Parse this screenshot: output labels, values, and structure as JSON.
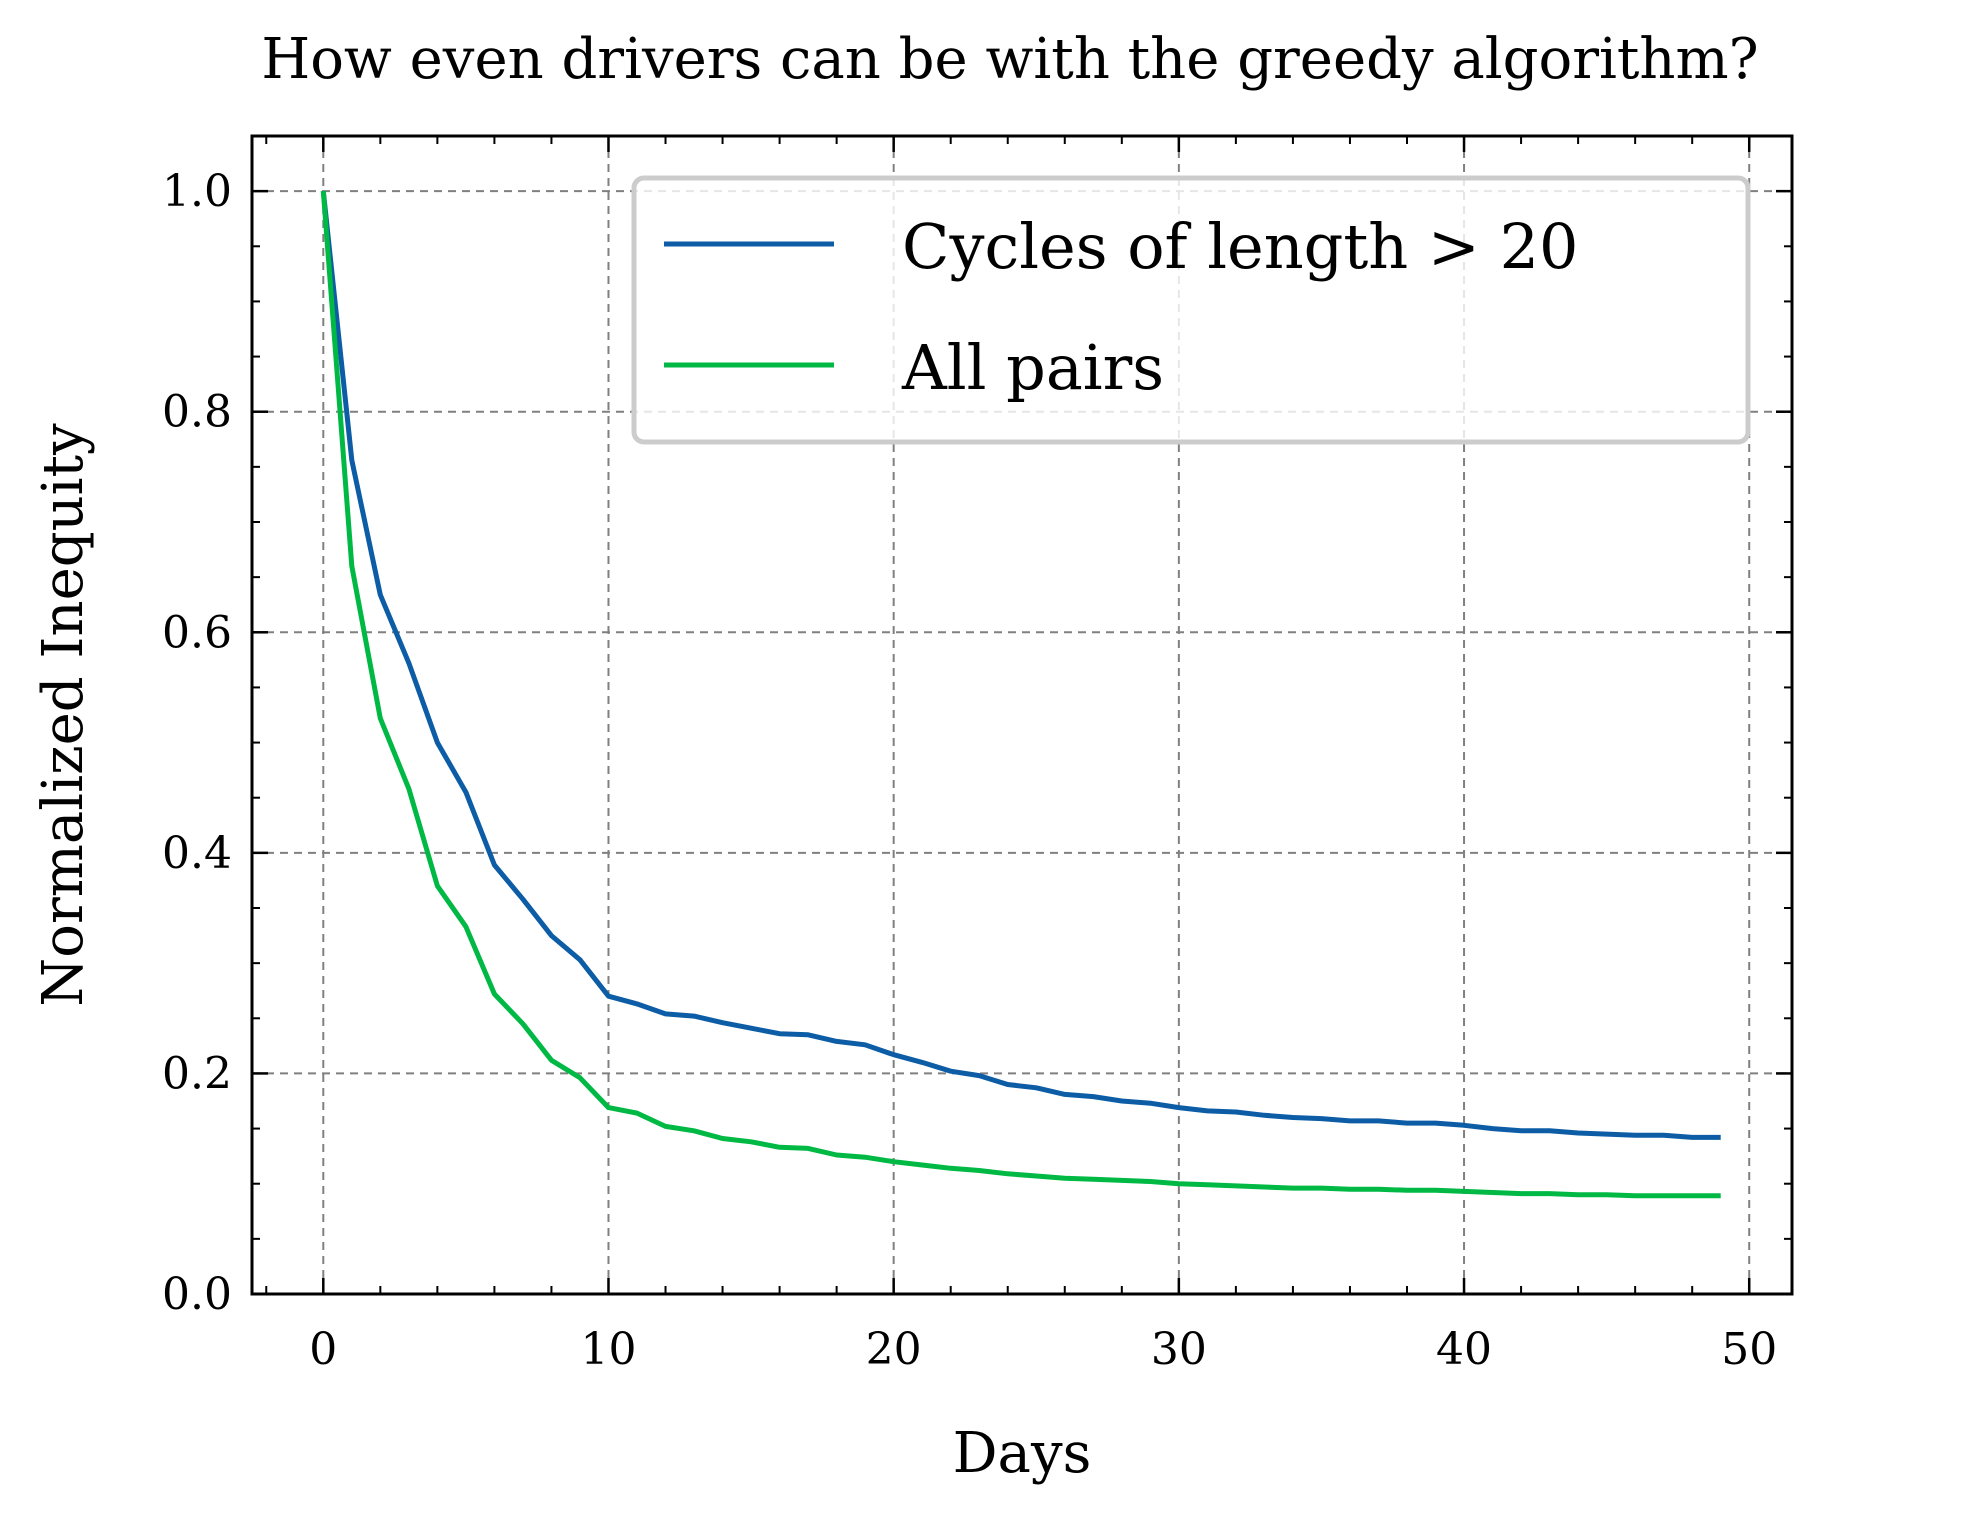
{
  "chart_data": {
    "type": "line",
    "title": "How even drivers can be with the greedy algorithm?",
    "xlabel": "Days",
    "ylabel": "Normalized Inequity",
    "xlim": [
      -2.5,
      51.5
    ],
    "ylim": [
      0.0,
      1.05
    ],
    "xticks": [
      0,
      10,
      20,
      30,
      40,
      50
    ],
    "xtick_labels": [
      "0",
      "10",
      "20",
      "30",
      "40",
      "50"
    ],
    "yticks": [
      0.0,
      0.2,
      0.4,
      0.6,
      0.8,
      1.0
    ],
    "ytick_labels": [
      "0.0",
      "0.2",
      "0.4",
      "0.6",
      "0.8",
      "1.0"
    ],
    "grid": true,
    "legend_position": "top-right",
    "x": [
      0,
      1,
      2,
      3,
      4,
      5,
      6,
      7,
      8,
      9,
      10,
      11,
      12,
      13,
      14,
      15,
      16,
      17,
      18,
      19,
      20,
      21,
      22,
      23,
      24,
      25,
      26,
      27,
      28,
      29,
      30,
      31,
      32,
      33,
      34,
      35,
      36,
      37,
      38,
      39,
      40,
      41,
      42,
      43,
      44,
      45,
      46,
      47,
      48,
      49
    ],
    "series": [
      {
        "name": "Cycles of length > 20",
        "color": "#0C5DA5",
        "values": [
          1.0,
          0.756,
          0.634,
          0.572,
          0.5,
          0.455,
          0.389,
          0.358,
          0.325,
          0.303,
          0.27,
          0.263,
          0.254,
          0.252,
          0.246,
          0.241,
          0.236,
          0.235,
          0.229,
          0.226,
          0.217,
          0.21,
          0.202,
          0.198,
          0.19,
          0.187,
          0.181,
          0.179,
          0.175,
          0.173,
          0.169,
          0.166,
          0.165,
          0.162,
          0.16,
          0.159,
          0.157,
          0.157,
          0.155,
          0.155,
          0.153,
          0.15,
          0.148,
          0.148,
          0.146,
          0.145,
          0.144,
          0.144,
          0.142,
          0.142
        ]
      },
      {
        "name": "All pairs",
        "color": "#00B945",
        "values": [
          1.0,
          0.66,
          0.522,
          0.458,
          0.37,
          0.333,
          0.272,
          0.245,
          0.212,
          0.196,
          0.169,
          0.164,
          0.152,
          0.148,
          0.141,
          0.138,
          0.133,
          0.132,
          0.126,
          0.124,
          0.12,
          0.117,
          0.114,
          0.112,
          0.109,
          0.107,
          0.105,
          0.104,
          0.103,
          0.102,
          0.1,
          0.099,
          0.098,
          0.097,
          0.096,
          0.096,
          0.095,
          0.095,
          0.094,
          0.094,
          0.093,
          0.092,
          0.091,
          0.091,
          0.09,
          0.09,
          0.089,
          0.089,
          0.089,
          0.089
        ]
      }
    ]
  }
}
